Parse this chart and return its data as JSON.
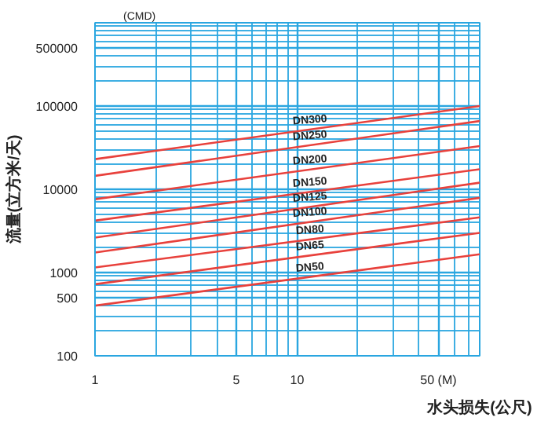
{
  "chart_data": {
    "type": "line",
    "xlabel": "水头损失(公尺)",
    "ylabel": "流量(立方米/天)",
    "annotations": [
      "(CMD)"
    ],
    "log": "xy",
    "grid": true,
    "marker": "none",
    "line_style": "solid",
    "xlim": [
      1,
      80
    ],
    "xticks": [
      1,
      5,
      10,
      {
        "value": 50,
        "label": "50 (M)"
      }
    ],
    "ylim": [
      100,
      1000000
    ],
    "yticks": [
      100,
      500,
      1000,
      10000,
      100000,
      500000
    ],
    "x": [
      1,
      80
    ],
    "series": [
      {
        "name": "DN300",
        "color": "#e8413c",
        "values": [
          23000,
          100000
        ]
      },
      {
        "name": "DN250",
        "color": "#e8413c",
        "values": [
          14500,
          66000
        ]
      },
      {
        "name": "DN200",
        "color": "#e8413c",
        "values": [
          7600,
          33000
        ]
      },
      {
        "name": "DN150",
        "color": "#e8413c",
        "values": [
          4200,
          17400
        ]
      },
      {
        "name": "DN125",
        "color": "#e8413c",
        "values": [
          2630,
          12000
        ]
      },
      {
        "name": "DN100",
        "color": "#e8413c",
        "values": [
          1740,
          7900
        ]
      },
      {
        "name": "DN80",
        "color": "#e8413c",
        "values": [
          1150,
          4600
        ]
      },
      {
        "name": "DN65",
        "color": "#e8413c",
        "values": [
          724,
          3000
        ]
      },
      {
        "name": "DN50",
        "color": "#e8413c",
        "values": [
          400,
          1660
        ]
      }
    ]
  }
}
